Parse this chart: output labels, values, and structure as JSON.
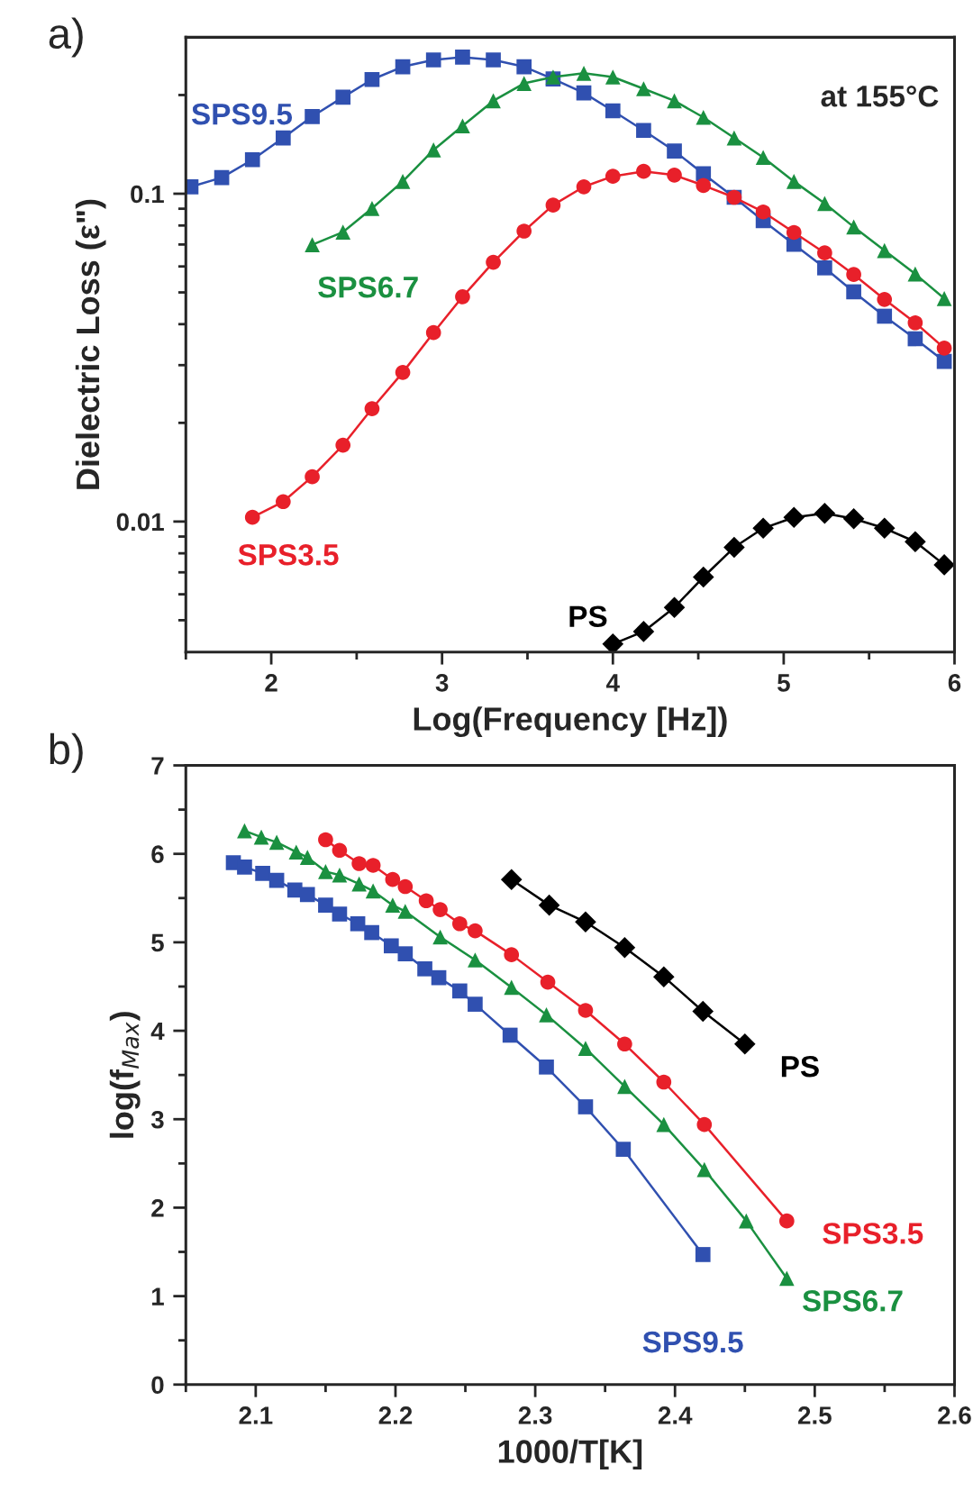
{
  "chart_data": [
    {
      "type": "line",
      "xlabel": "Log(Frequency [Hz])",
      "ylabel": "Dielectric Loss (ε\")",
      "log": "y",
      "xlim": [
        1.5,
        6
      ],
      "xticks": [
        {
          "value": 1.5,
          "label": null
        },
        2,
        {
          "value": 2.5,
          "label": null
        },
        3,
        {
          "value": 3.5,
          "label": null
        },
        4,
        {
          "value": 4.5,
          "label": null
        },
        5,
        {
          "value": 5.5,
          "label": null
        },
        6
      ],
      "ylim": [
        0.004,
        0.3
      ],
      "yticks": [
        {
          "value": 0.005,
          "label": null
        },
        {
          "value": 0.006,
          "label": null
        },
        {
          "value": 0.007,
          "label": null
        },
        {
          "value": 0.008,
          "label": null
        },
        {
          "value": 0.009,
          "label": null
        },
        {
          "value": 0.01,
          "label": "0.01"
        },
        {
          "value": 0.02,
          "label": null
        },
        {
          "value": 0.03,
          "label": null
        },
        {
          "value": 0.04,
          "label": null
        },
        {
          "value": 0.05,
          "label": null
        },
        {
          "value": 0.06,
          "label": null
        },
        {
          "value": 0.07,
          "label": null
        },
        {
          "value": 0.08,
          "label": null
        },
        {
          "value": 0.09,
          "label": null
        },
        {
          "value": 0.1,
          "label": "0.1"
        },
        {
          "value": 0.2,
          "label": null
        }
      ],
      "annotations": [
        "a)",
        "at 155°C"
      ],
      "series": [
        {
          "name": "SPS9.5",
          "color": "#3050b0",
          "marker": "square",
          "x": [
            1.53,
            1.71,
            1.89,
            2.07,
            2.24,
            2.42,
            2.59,
            2.77,
            2.95,
            3.12,
            3.3,
            3.48,
            3.65,
            3.83,
            4.0,
            4.18,
            4.36,
            4.53,
            4.71,
            4.88,
            5.06,
            5.24,
            5.41,
            5.59,
            5.77,
            5.94
          ],
          "values": [
            0.105,
            0.112,
            0.127,
            0.148,
            0.172,
            0.197,
            0.223,
            0.244,
            0.256,
            0.261,
            0.256,
            0.244,
            0.224,
            0.203,
            0.179,
            0.156,
            0.135,
            0.115,
            0.0975,
            0.0827,
            0.0701,
            0.0594,
            0.0502,
            0.0423,
            0.0361,
            0.0308
          ]
        },
        {
          "name": "SPS6.7",
          "color": "#1a9040",
          "marker": "triangle",
          "x": [
            2.24,
            2.42,
            2.59,
            2.77,
            2.95,
            3.12,
            3.3,
            3.48,
            3.65,
            3.83,
            4.0,
            4.18,
            4.36,
            4.53,
            4.71,
            4.88,
            5.06,
            5.24,
            5.41,
            5.59,
            5.77,
            5.94
          ],
          "values": [
            0.0699,
            0.0764,
            0.0902,
            0.109,
            0.136,
            0.161,
            0.192,
            0.217,
            0.227,
            0.233,
            0.227,
            0.209,
            0.192,
            0.171,
            0.148,
            0.129,
            0.109,
            0.0934,
            0.0792,
            0.0671,
            0.0569,
            0.0479
          ]
        },
        {
          "name": "SPS3.5",
          "color": "#e8202a",
          "marker": "circle",
          "x": [
            1.89,
            2.07,
            2.24,
            2.42,
            2.59,
            2.77,
            2.95,
            3.12,
            3.3,
            3.48,
            3.65,
            3.83,
            4.0,
            4.18,
            4.36,
            4.53,
            4.71,
            4.88,
            5.06,
            5.24,
            5.41,
            5.59,
            5.77,
            5.94
          ],
          "values": [
            0.0103,
            0.0115,
            0.0137,
            0.0171,
            0.0221,
            0.0285,
            0.0377,
            0.0485,
            0.0618,
            0.0769,
            0.0923,
            0.105,
            0.113,
            0.117,
            0.114,
            0.106,
            0.0975,
            0.088,
            0.0762,
            0.066,
            0.0567,
            0.0476,
            0.0404,
            0.0338
          ]
        },
        {
          "name": "PS",
          "color": "#000000",
          "marker": "diamond",
          "x": [
            4.0,
            4.18,
            4.36,
            4.53,
            4.71,
            4.88,
            5.06,
            5.24,
            5.41,
            5.59,
            5.77,
            5.94
          ],
          "values": [
            0.00423,
            0.00462,
            0.00547,
            0.00677,
            0.00834,
            0.00954,
            0.0103,
            0.0106,
            0.0102,
            0.00954,
            0.00868,
            0.00738
          ]
        }
      ]
    },
    {
      "type": "line",
      "xlabel": "1000/T[K]",
      "ylabel": "log(f$_{Max}$)",
      "xlim": [
        2.05,
        2.6
      ],
      "xticks": [
        {
          "value": 2.05,
          "label": null
        },
        2.1,
        {
          "value": 2.15,
          "label": null
        },
        2.2,
        {
          "value": 2.25,
          "label": null
        },
        2.3,
        {
          "value": 2.35,
          "label": null
        },
        2.4,
        {
          "value": 2.45,
          "label": null
        },
        2.5,
        {
          "value": 2.55,
          "label": null
        },
        2.6
      ],
      "ylim": [
        0,
        7
      ],
      "yticks": [
        0,
        {
          "value": 0.5,
          "label": null
        },
        1,
        {
          "value": 1.5,
          "label": null
        },
        2,
        {
          "value": 2.5,
          "label": null
        },
        3,
        {
          "value": 3.5,
          "label": null
        },
        4,
        {
          "value": 4.5,
          "label": null
        },
        5,
        {
          "value": 5.5,
          "label": null
        },
        6,
        {
          "value": 6.5,
          "label": null
        },
        7
      ],
      "annotations": [
        "b)"
      ],
      "series": [
        {
          "name": "SPS9.5",
          "color": "#3050b0",
          "marker": "square",
          "x": [
            2.084,
            2.092,
            2.105,
            2.115,
            2.128,
            2.137,
            2.15,
            2.16,
            2.173,
            2.183,
            2.197,
            2.207,
            2.221,
            2.231,
            2.246,
            2.257,
            2.282,
            2.308,
            2.336,
            2.363,
            2.42
          ],
          "values": [
            5.9,
            5.85,
            5.78,
            5.7,
            5.59,
            5.54,
            5.42,
            5.32,
            5.21,
            5.11,
            4.96,
            4.87,
            4.7,
            4.6,
            4.45,
            4.3,
            3.95,
            3.59,
            3.14,
            2.66,
            1.47
          ]
        },
        {
          "name": "SPS3.5",
          "color": "#e8202a",
          "marker": "circle",
          "x": [
            2.15,
            2.16,
            2.174,
            2.184,
            2.198,
            2.207,
            2.222,
            2.232,
            2.246,
            2.257,
            2.283,
            2.309,
            2.336,
            2.364,
            2.392,
            2.421,
            2.48
          ],
          "values": [
            6.16,
            6.04,
            5.89,
            5.87,
            5.71,
            5.63,
            5.47,
            5.37,
            5.21,
            5.13,
            4.86,
            4.55,
            4.23,
            3.85,
            3.42,
            2.94,
            1.85
          ]
        },
        {
          "name": "SPS6.7",
          "color": "#1a9040",
          "marker": "triangle",
          "x": [
            2.092,
            2.104,
            2.115,
            2.129,
            2.137,
            2.15,
            2.16,
            2.174,
            2.184,
            2.198,
            2.207,
            2.232,
            2.257,
            2.283,
            2.308,
            2.336,
            2.364,
            2.392,
            2.421,
            2.451,
            2.48
          ],
          "values": [
            6.26,
            6.19,
            6.13,
            6.02,
            5.96,
            5.8,
            5.76,
            5.66,
            5.58,
            5.42,
            5.35,
            5.06,
            4.8,
            4.49,
            4.18,
            3.8,
            3.37,
            2.94,
            2.43,
            1.85,
            1.2
          ]
        },
        {
          "name": "PS",
          "color": "#000000",
          "marker": "diamond",
          "x": [
            2.283,
            2.31,
            2.336,
            2.364,
            2.392,
            2.42,
            2.45
          ],
          "values": [
            5.71,
            5.42,
            5.23,
            4.94,
            4.61,
            4.22,
            3.85
          ]
        }
      ]
    }
  ]
}
